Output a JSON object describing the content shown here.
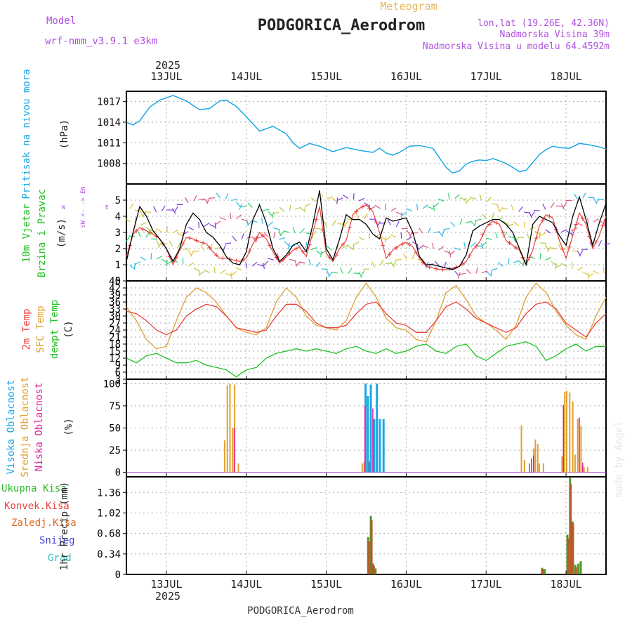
{
  "header": {
    "model_label": "Model",
    "model_value": "wrf-nmm_v3.9.1 e3km",
    "meteogram": "Meteogram",
    "station": "PODGORICA_Aerodrom",
    "lonlat": "lon,lat (19.26E, 42.36N)",
    "elevation": "Nadmorska Visina 39m",
    "model_elevation": "Nadmorska Visina u modelu 64.4592m"
  },
  "footer": {
    "station": "PODGORICA_Aerodrom",
    "credit": "made by Angel"
  },
  "time_axis": {
    "year": "2025",
    "days": [
      "13JUL",
      "14JUL",
      "15JUL",
      "16JUL",
      "17JUL",
      "18JUL"
    ],
    "range_hours": [
      0,
      144
    ]
  },
  "colors": {
    "pressure": "#1ba8e6",
    "temp2m": "#e8413c",
    "sfc": "#e0a030",
    "dewpt": "#22c022",
    "cloud_high": "#1ba8e6",
    "cloud_mid": "#e0a030",
    "cloud_low": "#e0209a",
    "precip_total": "#2db52d",
    "precip_conv": "#e8413c",
    "violet": "#b050e0"
  },
  "chart_data": [
    {
      "id": "pressure",
      "type": "line",
      "ylabel_side": "Pritisak na nivou mora",
      "ylabel": "(hPa)",
      "ylim": [
        1005,
        1018.5
      ],
      "yticks": [
        1008,
        1011,
        1014,
        1017
      ],
      "x": [
        0,
        2,
        4,
        7,
        10,
        14,
        18,
        22,
        25,
        28,
        30,
        33,
        36,
        40,
        44,
        48,
        50,
        52,
        55,
        58,
        62,
        66,
        70,
        74,
        76,
        78,
        80,
        82,
        85,
        88,
        92,
        96,
        98,
        100,
        102,
        104,
        106,
        108,
        110,
        113,
        116,
        118,
        120,
        122,
        124,
        126,
        128,
        130,
        133,
        136,
        139,
        142,
        144
      ],
      "series": [
        {
          "name": "pressure",
          "values": [
            1014.0,
            1013.6,
            1014.2,
            1016.2,
            1017.2,
            1017.9,
            1017.1,
            1015.8,
            1016.0,
            1017.1,
            1017.2,
            1016.3,
            1014.8,
            1012.7,
            1013.4,
            1012.3,
            1011.0,
            1010.2,
            1010.9,
            1010.5,
            1009.7,
            1010.3,
            1009.9,
            1009.6,
            1010.2,
            1009.5,
            1009.2,
            1009.6,
            1010.5,
            1010.6,
            1010.2,
            1007.4,
            1006.6,
            1006.9,
            1007.9,
            1008.3,
            1008.5,
            1008.4,
            1008.7,
            1008.2,
            1007.4,
            1006.8,
            1007.0,
            1008.1,
            1009.3,
            1010.0,
            1010.5,
            1010.3,
            1010.2,
            1010.9,
            1010.7,
            1010.4,
            1010.1
          ]
        }
      ]
    },
    {
      "id": "wind",
      "type": "line",
      "ylabel_side_1": "10m Vjetar",
      "ylabel_side_2": "Brzina i Pravac",
      "ylabel": "(m/s)",
      "compass_n": "N",
      "compass_row": "W <- -> E",
      "compass_s": "S",
      "ylim": [
        0,
        6
      ],
      "yticks": [
        0,
        1,
        2,
        3,
        4,
        5
      ],
      "x": [
        0,
        2,
        4,
        6,
        8,
        10,
        12,
        14,
        16,
        18,
        20,
        22,
        24,
        26,
        28,
        30,
        32,
        34,
        36,
        38,
        40,
        42,
        44,
        46,
        48,
        50,
        52,
        54,
        56,
        58,
        60,
        62,
        64,
        66,
        68,
        70,
        72,
        74,
        76,
        78,
        80,
        82,
        84,
        86,
        88,
        90,
        92,
        94,
        96,
        98,
        100,
        102,
        104,
        106,
        108,
        110,
        112,
        114,
        116,
        118,
        120,
        122,
        124,
        126,
        128,
        130,
        132,
        134,
        136,
        138,
        140,
        142,
        144
      ],
      "series": [
        {
          "name": "wind_speed",
          "values": [
            1.2,
            3.0,
            4.6,
            4.0,
            3.1,
            2.6,
            2.0,
            1.2,
            2.0,
            3.5,
            4.2,
            3.8,
            3.0,
            2.7,
            2.2,
            1.5,
            1.1,
            1.0,
            1.8,
            3.8,
            4.7,
            3.6,
            2.0,
            1.2,
            1.6,
            2.2,
            2.4,
            1.8,
            3.5,
            5.6,
            2.0,
            1.3,
            2.6,
            4.1,
            3.8,
            3.8,
            3.5,
            2.9,
            2.6,
            3.9,
            3.7,
            3.8,
            3.9,
            3.0,
            1.5,
            1.0,
            1.0,
            0.9,
            0.8,
            0.7,
            0.9,
            1.6,
            3.1,
            3.4,
            3.6,
            3.8,
            3.8,
            3.5,
            3.0,
            2.0,
            1.0,
            3.5,
            4.0,
            3.8,
            3.6,
            2.8,
            2.2,
            4.0,
            5.2,
            3.8,
            2.2,
            3.6,
            4.8
          ]
        },
        {
          "name": "wind_gust",
          "values": [
            1.5,
            2.9,
            3.3,
            3.1,
            2.9,
            2.6,
            2.0,
            1.0,
            1.9,
            2.7,
            2.6,
            2.4,
            2.3,
            1.8,
            1.4,
            1.4,
            1.3,
            1.2,
            1.4,
            2.3,
            3.0,
            2.6,
            1.8,
            1.1,
            1.5,
            1.9,
            2.1,
            1.5,
            3.0,
            4.6,
            1.7,
            1.2,
            2.0,
            2.5,
            4.1,
            4.5,
            4.7,
            4.3,
            3.0,
            1.4,
            1.9,
            2.2,
            2.4,
            2.1,
            1.4,
            0.9,
            0.8,
            0.7,
            0.7,
            0.8,
            0.9,
            1.2,
            1.9,
            2.4,
            3.3,
            3.7,
            3.5,
            2.5,
            2.2,
            1.9,
            1.0,
            1.9,
            3.4,
            4.1,
            3.9,
            2.5,
            1.4,
            2.8,
            4.2,
            3.5,
            2.0,
            2.8,
            4.0
          ]
        }
      ]
    },
    {
      "id": "temperature",
      "type": "line",
      "ylabel_side_1": "2m Temp",
      "ylabel_side_2": "SFC Temp",
      "ylabel_side_3": "dewpt Temp",
      "ylabel": "(C)",
      "ylim": [
        3,
        45
      ],
      "yticks": [
        3,
        6,
        9,
        12,
        15,
        18,
        21,
        24,
        27,
        30,
        33,
        36,
        39,
        42,
        45
      ],
      "x": [
        0,
        3,
        6,
        9,
        12,
        15,
        18,
        21,
        24,
        27,
        30,
        33,
        36,
        39,
        42,
        45,
        48,
        51,
        54,
        57,
        60,
        63,
        66,
        69,
        72,
        75,
        78,
        81,
        84,
        87,
        90,
        93,
        96,
        99,
        102,
        105,
        108,
        111,
        114,
        117,
        120,
        123,
        126,
        129,
        132,
        135,
        138,
        141,
        144
      ],
      "series": [
        {
          "name": "t2m",
          "values": [
            32,
            31,
            28,
            24,
            22,
            24,
            30,
            33,
            35,
            34,
            30,
            25,
            24,
            23,
            24,
            30,
            35,
            35,
            32,
            27,
            25,
            25,
            26,
            31,
            35,
            36,
            31,
            27,
            26,
            23,
            23,
            28,
            34,
            36,
            33,
            29,
            27,
            25,
            23,
            25,
            31,
            35,
            36,
            33,
            27,
            24,
            21,
            27,
            31
          ]
        },
        {
          "name": "sfc",
          "values": [
            34,
            28,
            20,
            16,
            17,
            28,
            38,
            42,
            40,
            36,
            30,
            25,
            23,
            22,
            25,
            36,
            42,
            38,
            30,
            26,
            25,
            24,
            28,
            38,
            44,
            38,
            29,
            25,
            24,
            20,
            19,
            28,
            40,
            43,
            37,
            30,
            27,
            24,
            20,
            26,
            38,
            44,
            40,
            32,
            26,
            22,
            20,
            30,
            38
          ]
        },
        {
          "name": "dewpt",
          "values": [
            12,
            10,
            13,
            14,
            12,
            10,
            10,
            11,
            9,
            8,
            7,
            4,
            7,
            8,
            12,
            14,
            15,
            16,
            15,
            16,
            15,
            14,
            16,
            17,
            15,
            14,
            16,
            14,
            15,
            17,
            18,
            15,
            14,
            17,
            18,
            13,
            11,
            14,
            17,
            18,
            19,
            17,
            11,
            13,
            16,
            18,
            15,
            17,
            17
          ]
        }
      ]
    },
    {
      "id": "clouds",
      "type": "bar",
      "ylabel_side_1": "Visoka Oblacnost",
      "ylabel_side_2": "Srednja Oblacnost",
      "ylabel_side_3": "Niska Oblacnost",
      "ylabel": "(%)",
      "ylim": [
        -5,
        105
      ],
      "yticks": [
        0,
        25,
        50,
        75,
        100
      ],
      "series": [
        {
          "name": "mid",
          "x": [
            29.5,
            30.3,
            31.1,
            31.9,
            32.5,
            33.6,
            70.8,
            71.4,
            118.6,
            119.5,
            122.3,
            122.8,
            123.5,
            124.0,
            125.2,
            126.3,
            130.8,
            131.6,
            132.2,
            133.1,
            134.0,
            134.7,
            135.5,
            136.5,
            137.4,
            138.5
          ],
          "values": [
            36,
            98,
            100,
            50,
            99,
            10,
            10,
            12,
            53,
            14,
            27,
            37,
            32,
            10,
            10,
            0,
            18,
            91,
            92,
            90,
            80,
            20,
            60,
            52,
            6,
            6
          ]
        },
        {
          "name": "high",
          "x": [
            71.8,
            72.5,
            73.4,
            74.4,
            75.2,
            76.1,
            77.2
          ],
          "values": [
            100,
            86,
            99,
            60,
            100,
            60,
            60
          ]
        },
        {
          "name": "low",
          "x": [
            32.4,
            71.6,
            72.9,
            74.0,
            121.0,
            121.6,
            122.2,
            131.2,
            136.0,
            137.0
          ],
          "values": [
            50,
            75,
            12,
            72,
            10,
            16,
            19,
            76,
            62,
            11
          ]
        }
      ]
    },
    {
      "id": "precip",
      "type": "bar",
      "ylabel_side_1": "Ukupna Kisa",
      "ylabel_side_2": "Konvek.Kisa",
      "ylabel_side_3": "Zaledj.Kisa",
      "ylabel_side_4": "Snijeg",
      "ylabel_side_5": "Grad",
      "ylabel": "1hr Precip (mm)",
      "ylim": [
        0,
        1.62
      ],
      "yticks": [
        0,
        0.34,
        0.68,
        1.02,
        1.36
      ],
      "ytick_labels": [
        "0",
        "0.34",
        "0.68",
        "1.02",
        "1.36"
      ],
      "series": [
        {
          "name": "total",
          "x": [
            72.6,
            73.4,
            74.1,
            74.8,
            124.8,
            125.6,
            132.4,
            133.2,
            133.9,
            134.8,
            135.7,
            136.4
          ],
          "values": [
            0.62,
            0.97,
            0.18,
            0.1,
            0.11,
            0.09,
            0.66,
            1.6,
            0.88,
            0.16,
            0.18,
            0.22
          ]
        },
        {
          "name": "conv",
          "x": [
            72.8,
            73.6,
            74.3,
            125.0,
            132.6,
            133.4,
            134.1,
            135.0
          ],
          "values": [
            0.55,
            0.9,
            0.14,
            0.09,
            0.6,
            1.5,
            0.85,
            0.12
          ]
        }
      ]
    }
  ]
}
